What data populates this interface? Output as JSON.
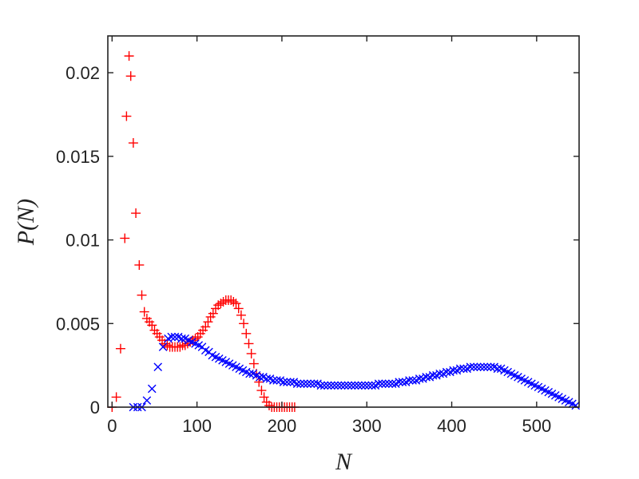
{
  "chart_data": {
    "type": "scatter",
    "xlabel": "N",
    "ylabel": "P(N)",
    "xlim": [
      -5,
      550
    ],
    "ylim": [
      0,
      0.0222
    ],
    "xticks": [
      0,
      100,
      200,
      300,
      400,
      500
    ],
    "yticks": [
      0,
      0.005,
      0.01,
      0.015,
      0.02
    ],
    "xtick_labels": [
      "0",
      "100",
      "200",
      "300",
      "400",
      "500"
    ],
    "ytick_labels": [
      "0",
      "0.005",
      "0.01",
      "0.015",
      "0.02"
    ],
    "grid": false,
    "legend": "none",
    "series": [
      {
        "marker": "plus",
        "color": "#ff0000",
        "points": [
          [
            0,
            0.0
          ],
          [
            5,
            0.0006
          ],
          [
            10,
            0.0035
          ],
          [
            15,
            0.0101
          ],
          [
            17,
            0.0174
          ],
          [
            20,
            0.021
          ],
          [
            22,
            0.0198
          ],
          [
            25,
            0.0158
          ],
          [
            28,
            0.0116
          ],
          [
            32,
            0.0085
          ],
          [
            35,
            0.0067
          ],
          [
            38,
            0.0057
          ],
          [
            41,
            0.0053
          ],
          [
            44,
            0.0051
          ],
          [
            47,
            0.0049
          ],
          [
            50,
            0.0046
          ],
          [
            53,
            0.0044
          ],
          [
            56,
            0.0042
          ],
          [
            59,
            0.004
          ],
          [
            62,
            0.0038
          ],
          [
            65,
            0.0037
          ],
          [
            68,
            0.0036
          ],
          [
            71,
            0.0036
          ],
          [
            74,
            0.0036
          ],
          [
            77,
            0.0036
          ],
          [
            80,
            0.0036
          ],
          [
            83,
            0.0037
          ],
          [
            86,
            0.0037
          ],
          [
            89,
            0.0038
          ],
          [
            92,
            0.0039
          ],
          [
            95,
            0.004
          ],
          [
            98,
            0.0041
          ],
          [
            101,
            0.0042
          ],
          [
            104,
            0.0044
          ],
          [
            107,
            0.0046
          ],
          [
            110,
            0.0048
          ],
          [
            113,
            0.0051
          ],
          [
            116,
            0.0054
          ],
          [
            119,
            0.0056
          ],
          [
            122,
            0.0059
          ],
          [
            125,
            0.0061
          ],
          [
            128,
            0.0062
          ],
          [
            131,
            0.0063
          ],
          [
            134,
            0.0064
          ],
          [
            137,
            0.0064
          ],
          [
            140,
            0.0064
          ],
          [
            143,
            0.0063
          ],
          [
            146,
            0.0062
          ],
          [
            149,
            0.0059
          ],
          [
            152,
            0.0055
          ],
          [
            155,
            0.005
          ],
          [
            158,
            0.0044
          ],
          [
            161,
            0.0038
          ],
          [
            164,
            0.0032
          ],
          [
            167,
            0.0026
          ],
          [
            170,
            0.002
          ],
          [
            173,
            0.0015
          ],
          [
            176,
            0.001
          ],
          [
            179,
            0.0006
          ],
          [
            182,
            0.0003
          ],
          [
            185,
            0.0001
          ],
          [
            188,
            0.0
          ],
          [
            191,
            0.0
          ],
          [
            194,
            0.0
          ],
          [
            197,
            0.0
          ],
          [
            200,
            0.0
          ],
          [
            203,
            0.0
          ],
          [
            206,
            0.0
          ],
          [
            209,
            0.0
          ],
          [
            212,
            0.0
          ],
          [
            215,
            0.0
          ]
        ]
      },
      {
        "marker": "cross",
        "color": "#0000ff",
        "points": [
          [
            25,
            0.0
          ],
          [
            30,
            0.0
          ],
          [
            35,
            0.0
          ],
          [
            41,
            0.0004
          ],
          [
            47,
            0.0011
          ],
          [
            54,
            0.0024
          ],
          [
            60,
            0.0036
          ],
          [
            66,
            0.0041
          ],
          [
            70,
            0.0042
          ],
          [
            74,
            0.0042
          ],
          [
            78,
            0.0042
          ],
          [
            82,
            0.0041
          ],
          [
            86,
            0.0041
          ],
          [
            90,
            0.004
          ],
          [
            94,
            0.0039
          ],
          [
            98,
            0.0038
          ],
          [
            102,
            0.0037
          ],
          [
            106,
            0.0036
          ],
          [
            110,
            0.0034
          ],
          [
            114,
            0.0033
          ],
          [
            118,
            0.0031
          ],
          [
            122,
            0.003
          ],
          [
            126,
            0.0029
          ],
          [
            130,
            0.0028
          ],
          [
            134,
            0.0027
          ],
          [
            138,
            0.0026
          ],
          [
            142,
            0.0025
          ],
          [
            146,
            0.0024
          ],
          [
            150,
            0.0023
          ],
          [
            154,
            0.0022
          ],
          [
            158,
            0.0021
          ],
          [
            162,
            0.002
          ],
          [
            166,
            0.002
          ],
          [
            170,
            0.0019
          ],
          [
            174,
            0.0018
          ],
          [
            178,
            0.0018
          ],
          [
            182,
            0.0017
          ],
          [
            186,
            0.0017
          ],
          [
            190,
            0.0016
          ],
          [
            194,
            0.0016
          ],
          [
            198,
            0.0016
          ],
          [
            202,
            0.0015
          ],
          [
            206,
            0.0015
          ],
          [
            210,
            0.0015
          ],
          [
            214,
            0.0015
          ],
          [
            218,
            0.0014
          ],
          [
            222,
            0.0014
          ],
          [
            226,
            0.0014
          ],
          [
            230,
            0.0014
          ],
          [
            234,
            0.0014
          ],
          [
            238,
            0.0014
          ],
          [
            242,
            0.0014
          ],
          [
            246,
            0.0013
          ],
          [
            250,
            0.0013
          ],
          [
            254,
            0.0013
          ],
          [
            258,
            0.0013
          ],
          [
            262,
            0.0013
          ],
          [
            266,
            0.0013
          ],
          [
            270,
            0.0013
          ],
          [
            274,
            0.0013
          ],
          [
            278,
            0.0013
          ],
          [
            282,
            0.0013
          ],
          [
            286,
            0.0013
          ],
          [
            290,
            0.0013
          ],
          [
            294,
            0.0013
          ],
          [
            298,
            0.0013
          ],
          [
            302,
            0.0013
          ],
          [
            306,
            0.0013
          ],
          [
            310,
            0.0013
          ],
          [
            314,
            0.0014
          ],
          [
            318,
            0.0014
          ],
          [
            322,
            0.0014
          ],
          [
            326,
            0.0014
          ],
          [
            330,
            0.0014
          ],
          [
            334,
            0.0014
          ],
          [
            338,
            0.0015
          ],
          [
            342,
            0.0015
          ],
          [
            346,
            0.0015
          ],
          [
            350,
            0.0016
          ],
          [
            354,
            0.0016
          ],
          [
            358,
            0.0016
          ],
          [
            362,
            0.0017
          ],
          [
            366,
            0.0017
          ],
          [
            370,
            0.0018
          ],
          [
            374,
            0.0018
          ],
          [
            378,
            0.0019
          ],
          [
            382,
            0.0019
          ],
          [
            386,
            0.002
          ],
          [
            390,
            0.002
          ],
          [
            394,
            0.0021
          ],
          [
            398,
            0.0021
          ],
          [
            402,
            0.0022
          ],
          [
            406,
            0.0022
          ],
          [
            410,
            0.0023
          ],
          [
            414,
            0.0023
          ],
          [
            418,
            0.0023
          ],
          [
            422,
            0.0024
          ],
          [
            426,
            0.0024
          ],
          [
            430,
            0.0024
          ],
          [
            434,
            0.0024
          ],
          [
            438,
            0.0024
          ],
          [
            442,
            0.0024
          ],
          [
            446,
            0.0024
          ],
          [
            450,
            0.0024
          ],
          [
            454,
            0.0023
          ],
          [
            458,
            0.0023
          ],
          [
            462,
            0.0022
          ],
          [
            466,
            0.0021
          ],
          [
            470,
            0.002
          ],
          [
            474,
            0.0019
          ],
          [
            478,
            0.0018
          ],
          [
            482,
            0.0017
          ],
          [
            486,
            0.0016
          ],
          [
            490,
            0.0015
          ],
          [
            494,
            0.0014
          ],
          [
            498,
            0.0013
          ],
          [
            502,
            0.0012
          ],
          [
            506,
            0.0011
          ],
          [
            510,
            0.001
          ],
          [
            514,
            0.0009
          ],
          [
            518,
            0.0008
          ],
          [
            522,
            0.0007
          ],
          [
            526,
            0.0006
          ],
          [
            530,
            0.0005
          ],
          [
            534,
            0.0004
          ],
          [
            538,
            0.0003
          ],
          [
            542,
            0.0002
          ],
          [
            546,
            0.0001
          ]
        ]
      }
    ]
  }
}
